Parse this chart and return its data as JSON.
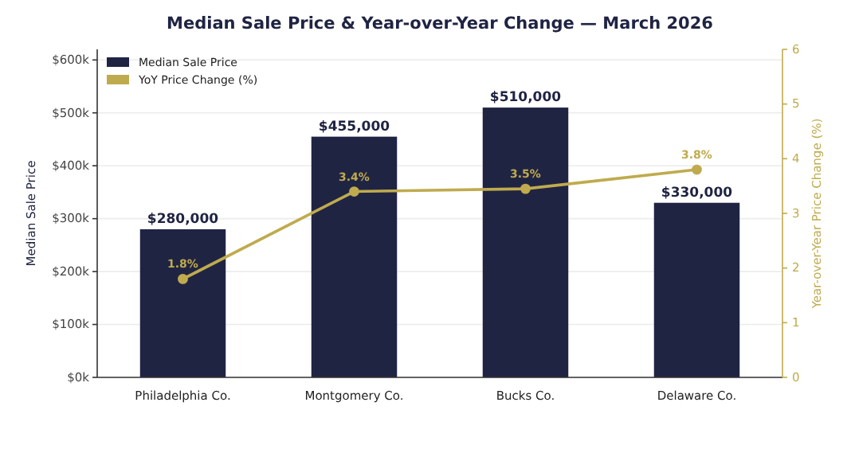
{
  "chart_data": {
    "type": "bar",
    "title": "Median Sale Price & Year-over-Year Change — March 2026",
    "categories": [
      "Philadelphia Co.",
      "Montgomery Co.",
      "Bucks Co.",
      "Delaware Co."
    ],
    "ylabel": "Median Sale Price",
    "y2label": "Year-over-Year Price Change (%)",
    "series": [
      {
        "name": "Median Sale Price",
        "color": "#202443",
        "values": [
          280000,
          455000,
          510000,
          330000
        ],
        "value_labels": [
          "$280,000",
          "$455,000",
          "$510,000",
          "$330,000"
        ]
      },
      {
        "name": "YoY Price Change (%)",
        "type": "line",
        "axis": "y2",
        "color": "#bfab4e",
        "values": [
          1.8,
          3.4,
          3.45,
          3.8
        ],
        "value_labels": [
          "1.8%",
          "3.4%",
          "3.5%",
          "3.8%"
        ]
      }
    ],
    "ylim": [
      0,
      620000
    ],
    "yticks": [
      {
        "value": 0,
        "label": "$0k"
      },
      {
        "value": 100000,
        "label": "$100k"
      },
      {
        "value": 200000,
        "label": "$200k"
      },
      {
        "value": 300000,
        "label": "$300k"
      },
      {
        "value": 400000,
        "label": "$400k"
      },
      {
        "value": 500000,
        "label": "$500k"
      },
      {
        "value": 600000,
        "label": "$600k"
      }
    ],
    "y2lim": [
      0,
      6
    ],
    "y2ticks": [
      0,
      1,
      2,
      3,
      4,
      5,
      6
    ],
    "grid": "y",
    "legend": "top left",
    "marker": "circle"
  }
}
